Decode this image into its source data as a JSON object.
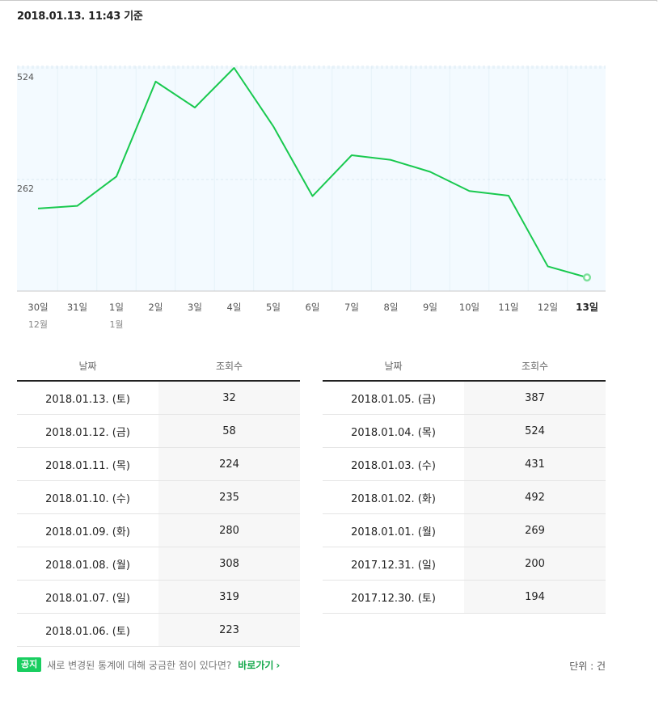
{
  "header": {
    "timestamp": "2018.01.13. 11:43 기준"
  },
  "colors": {
    "line": "#19c94f",
    "plot_bg": "#f3faff",
    "grid": "#dbe9f3"
  },
  "chart_data": {
    "type": "line",
    "categories": [
      "30일",
      "31일",
      "1일",
      "2일",
      "3일",
      "4일",
      "5일",
      "6일",
      "7일",
      "8일",
      "9일",
      "10일",
      "11일",
      "12일",
      "13일"
    ],
    "month_labels": [
      "12월",
      "",
      "1월",
      "",
      "",
      "",
      "",
      "",
      "",
      "",
      "",
      "",
      "",
      "",
      ""
    ],
    "series": [
      {
        "values": [
          194,
          200,
          269,
          492,
          431,
          524,
          387,
          223,
          319,
          308,
          280,
          235,
          224,
          58,
          32
        ]
      }
    ],
    "yticks": [
      262,
      524
    ],
    "ylim": [
      0,
      524
    ],
    "highlight_last": true
  },
  "table": {
    "headers": [
      "날짜",
      "조회수"
    ],
    "left_rows": [
      [
        "2018.01.13. (토)",
        "32"
      ],
      [
        "2018.01.12. (금)",
        "58"
      ],
      [
        "2018.01.11. (목)",
        "224"
      ],
      [
        "2018.01.10. (수)",
        "235"
      ],
      [
        "2018.01.09. (화)",
        "280"
      ],
      [
        "2018.01.08. (월)",
        "308"
      ],
      [
        "2018.01.07. (일)",
        "319"
      ],
      [
        "2018.01.06. (토)",
        "223"
      ]
    ],
    "right_rows": [
      [
        "2018.01.05. (금)",
        "387"
      ],
      [
        "2018.01.04. (목)",
        "524"
      ],
      [
        "2018.01.03. (수)",
        "431"
      ],
      [
        "2018.01.02. (화)",
        "492"
      ],
      [
        "2018.01.01. (월)",
        "269"
      ],
      [
        "2017.12.31. (일)",
        "200"
      ],
      [
        "2017.12.30. (토)",
        "194"
      ]
    ]
  },
  "footer": {
    "badge": "공지",
    "notice": "새로 변경된 통계에 대해 궁금한 점이 있다면?",
    "link": "바로가기",
    "link_chevron": "›",
    "unit": "단위 : 건"
  }
}
